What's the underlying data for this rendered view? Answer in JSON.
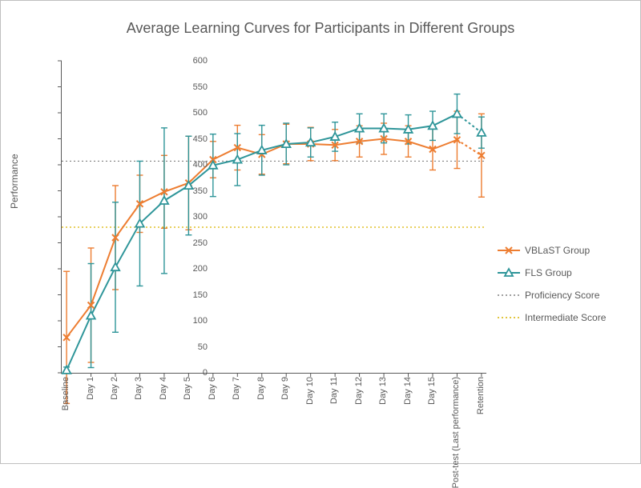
{
  "title": "Average Learning Curves for Participants in Different Groups",
  "ylabel": "Performance",
  "axes": {
    "xlim": [
      -0.2,
      17.2
    ],
    "ylim": [
      0,
      600
    ],
    "ytick_step": 50,
    "tick_fontsize": 11,
    "title_fontsize": 18,
    "label_fontsize": 12,
    "axis_color": "#595959",
    "background": "#ffffff"
  },
  "categories": [
    "Baseline",
    "Day 1",
    "Day 2",
    "Day 3",
    "Day 4",
    "Day 5",
    "Day 6",
    "Day 7",
    "Day 8",
    "Day 9",
    "Day 10",
    "Day 11",
    "Day 12",
    "Day 13",
    "Day 14",
    "Day 15",
    "Post-test (Last performance)",
    "Retention"
  ],
  "reference_lines": {
    "proficiency": {
      "value": 407,
      "color": "#808080",
      "dash": "2 3",
      "label": "Proficiency Score"
    },
    "intermediate": {
      "value": 280,
      "color": "#d9b400",
      "dash": "2 3",
      "label": "Intermediate Score"
    }
  },
  "series": [
    {
      "name": "VBLaST Group",
      "color": "#ed7d31",
      "marker": "x",
      "line_width": 2,
      "marker_size": 4,
      "dotted_from_index": 16,
      "y": [
        68,
        130,
        260,
        325,
        348,
        365,
        410,
        433,
        420,
        440,
        440,
        438,
        445,
        450,
        445,
        430,
        448,
        418
      ],
      "err": [
        127,
        110,
        100,
        55,
        70,
        90,
        35,
        43,
        38,
        38,
        32,
        30,
        30,
        30,
        30,
        40,
        55,
        80
      ]
    },
    {
      "name": "FLS Group",
      "color": "#2e9599",
      "marker": "triangle",
      "line_width": 2,
      "marker_size": 4,
      "dotted_from_index": 16,
      "y": [
        5,
        110,
        203,
        287,
        331,
        360,
        399,
        410,
        428,
        440,
        443,
        454,
        470,
        470,
        468,
        475,
        498,
        462
      ],
      "err": [
        6,
        100,
        125,
        120,
        140,
        95,
        60,
        50,
        48,
        40,
        28,
        28,
        28,
        28,
        28,
        28,
        38,
        30
      ]
    }
  ],
  "legend": {
    "items": [
      {
        "label": "VBLaST Group",
        "seriesIndex": 0
      },
      {
        "label": "FLS Group",
        "seriesIndex": 1
      },
      {
        "label": "Proficiency Score",
        "ref": "proficiency"
      },
      {
        "label": "Intermediate Score",
        "ref": "intermediate"
      }
    ],
    "fontsize": 12
  }
}
